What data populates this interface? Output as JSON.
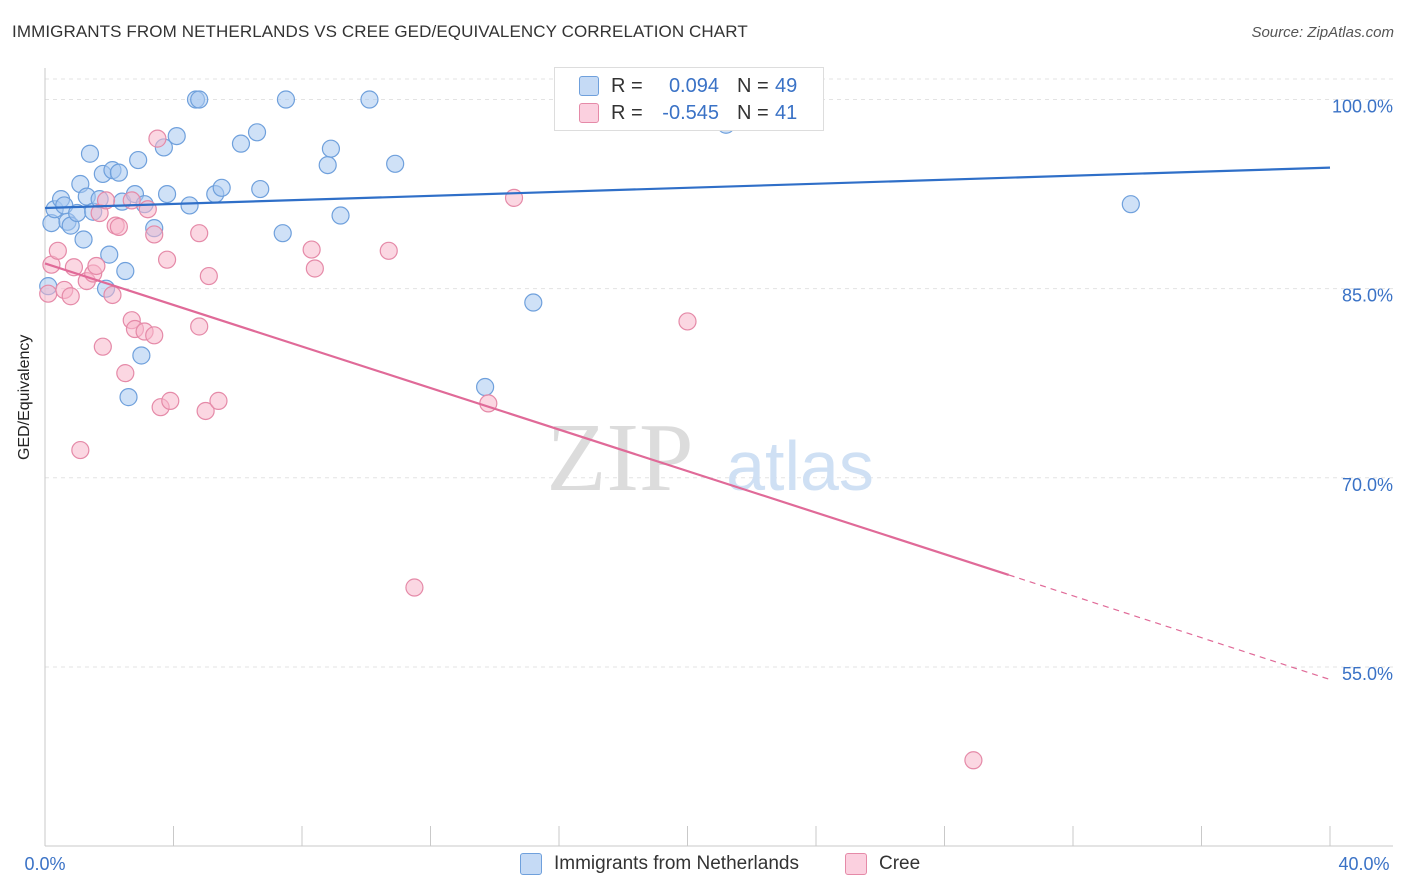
{
  "header": {
    "title": "IMMIGRANTS FROM NETHERLANDS VS CREE GED/EQUIVALENCY CORRELATION CHART",
    "source": "Source: ZipAtlas.com"
  },
  "watermark": {
    "zip": "ZIP",
    "atlas": "atlas"
  },
  "legend": {
    "series1": {
      "r_label": "R =",
      "r_value": "0.094",
      "n_label": "N =",
      "n_value": "49"
    },
    "series2": {
      "r_label": "R =",
      "r_value": "-0.545",
      "n_label": "N =",
      "n_value": "41"
    }
  },
  "bottom_legend": {
    "series1": "Immigrants from Netherlands",
    "series2": "Cree"
  },
  "colors": {
    "blue_fill": "#a8c8f0",
    "blue_stroke": "#6fa0dc",
    "blue_line": "#2f6fc8",
    "pink_fill": "#f7b6cb",
    "pink_stroke": "#e58aa8",
    "pink_line": "#e06a98",
    "axis_text": "#3a72c6",
    "grid": "#e3e3e3"
  },
  "chart_data": {
    "type": "scatter",
    "title": "IMMIGRANTS FROM NETHERLANDS VS CREE GED/EQUIVALENCY CORRELATION CHART",
    "xlabel": "",
    "ylabel": "GED/Equivalency",
    "xlim": [
      0,
      40
    ],
    "ylim": [
      40.8,
      102.5
    ],
    "x_tick_labels": [
      "0.0%",
      "40.0%"
    ],
    "y_ticks": [
      55,
      70,
      85,
      100
    ],
    "y_tick_labels": [
      "55.0%",
      "70.0%",
      "85.0%",
      "100.0%"
    ],
    "grid": true,
    "series": [
      {
        "name": "Immigrants from Netherlands",
        "color": "#a8c8f0",
        "trend": {
          "x": [
            0,
            40
          ],
          "y": [
            91.4,
            94.6
          ],
          "style": "solid"
        },
        "points": [
          [
            0.2,
            90.2
          ],
          [
            0.3,
            91.3
          ],
          [
            0.5,
            92.1
          ],
          [
            0.6,
            91.6
          ],
          [
            0.7,
            90.3
          ],
          [
            0.8,
            90.0
          ],
          [
            1.0,
            91.0
          ],
          [
            1.1,
            93.3
          ],
          [
            1.2,
            88.9
          ],
          [
            1.3,
            92.3
          ],
          [
            1.4,
            95.7
          ],
          [
            1.5,
            91.1
          ],
          [
            1.7,
            92.1
          ],
          [
            1.8,
            94.1
          ],
          [
            2.0,
            87.7
          ],
          [
            2.1,
            94.4
          ],
          [
            2.3,
            94.2
          ],
          [
            2.4,
            91.9
          ],
          [
            2.5,
            86.4
          ],
          [
            2.8,
            92.5
          ],
          [
            2.9,
            95.2
          ],
          [
            3.0,
            79.7
          ],
          [
            3.1,
            91.7
          ],
          [
            3.4,
            89.8
          ],
          [
            3.7,
            96.2
          ],
          [
            3.8,
            92.5
          ],
          [
            4.1,
            97.1
          ],
          [
            4.5,
            91.6
          ],
          [
            4.7,
            100.0
          ],
          [
            4.8,
            100.0
          ],
          [
            5.3,
            92.5
          ],
          [
            5.5,
            93.0
          ],
          [
            6.1,
            96.5
          ],
          [
            6.6,
            97.4
          ],
          [
            6.7,
            92.9
          ],
          [
            7.4,
            89.4
          ],
          [
            7.5,
            100.0
          ],
          [
            8.8,
            94.8
          ],
          [
            8.9,
            96.1
          ],
          [
            9.2,
            90.8
          ],
          [
            10.1,
            100.0
          ],
          [
            10.9,
            94.9
          ],
          [
            13.7,
            77.2
          ],
          [
            15.2,
            83.9
          ],
          [
            21.2,
            98.0
          ],
          [
            33.8,
            91.7
          ],
          [
            2.6,
            76.4
          ],
          [
            1.9,
            85.0
          ],
          [
            0.1,
            85.2
          ]
        ]
      },
      {
        "name": "Cree",
        "color": "#f7b6cb",
        "trend": {
          "x": [
            0,
            30
          ],
          "y": [
            87.0,
            62.3
          ],
          "style": "solid",
          "extended_to": [
            40,
            54.0
          ]
        },
        "points": [
          [
            0.1,
            84.6
          ],
          [
            0.2,
            86.9
          ],
          [
            0.4,
            88.0
          ],
          [
            0.6,
            84.9
          ],
          [
            0.8,
            84.4
          ],
          [
            0.9,
            86.7
          ],
          [
            1.1,
            72.2
          ],
          [
            1.3,
            85.6
          ],
          [
            1.5,
            86.2
          ],
          [
            1.6,
            86.8
          ],
          [
            1.7,
            91.0
          ],
          [
            1.8,
            80.4
          ],
          [
            1.9,
            92.0
          ],
          [
            2.1,
            84.5
          ],
          [
            2.2,
            90.0
          ],
          [
            2.3,
            89.9
          ],
          [
            2.5,
            78.3
          ],
          [
            2.7,
            92.0
          ],
          [
            2.7,
            82.5
          ],
          [
            2.8,
            81.8
          ],
          [
            3.1,
            81.6
          ],
          [
            3.2,
            91.3
          ],
          [
            3.4,
            81.3
          ],
          [
            3.4,
            89.3
          ],
          [
            3.5,
            96.9
          ],
          [
            3.6,
            75.6
          ],
          [
            3.8,
            87.3
          ],
          [
            3.9,
            76.1
          ],
          [
            4.8,
            89.4
          ],
          [
            4.8,
            82.0
          ],
          [
            5.0,
            75.3
          ],
          [
            5.1,
            86.0
          ],
          [
            5.4,
            76.1
          ],
          [
            8.3,
            88.1
          ],
          [
            8.4,
            86.6
          ],
          [
            10.7,
            88.0
          ],
          [
            11.5,
            61.3
          ],
          [
            13.8,
            75.9
          ],
          [
            14.6,
            92.2
          ],
          [
            20.0,
            82.4
          ],
          [
            28.9,
            47.6
          ]
        ]
      }
    ]
  }
}
